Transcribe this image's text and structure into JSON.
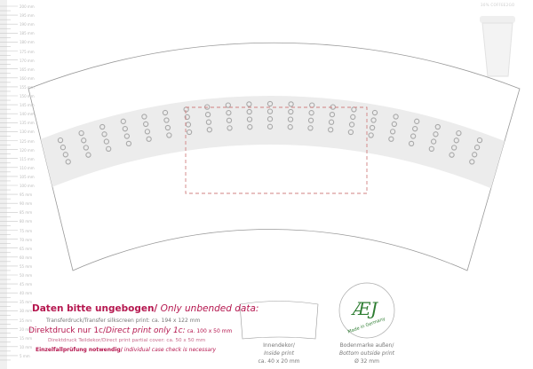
{
  "ruler": {
    "labels": [
      "200 mm",
      "195 mm",
      "190 mm",
      "185 mm",
      "180 mm",
      "175 mm",
      "170 mm",
      "165 mm",
      "160 mm",
      "155 mm",
      "150 mm",
      "145 mm",
      "140 mm",
      "135 mm",
      "130 mm",
      "125 mm",
      "120 mm",
      "115 mm",
      "110 mm",
      "105 mm",
      "100 mm",
      "95 mm",
      "90 mm",
      "85 mm",
      "80 mm",
      "75 mm",
      "70 mm",
      "65 mm",
      "60 mm",
      "55 mm",
      "50 mm",
      "45 mm",
      "40 mm",
      "35 mm",
      "30 mm",
      "25 mm",
      "20 mm",
      "15 mm",
      "10 mm",
      "5 mm"
    ]
  },
  "brand": "30% COFFEE2GO",
  "notes": {
    "heading_de": "Daten bitte ungebogen/",
    "heading_en": " Only unbended data:",
    "transfer": "Transferdruck/Transfer silkscreen print: ca. 194 x 122 mm",
    "direct_de": "Direktdruck nur 1c/",
    "direct_en": "Direct print only 1c:",
    "direct_size": " ca. 100 x 50 mm",
    "partial": "Direktdruck Teildekor/Direct print partial cover: ca. 50 x 50 mm",
    "check_de": "Einzelfallprüfung notwendig/",
    "check_en": " individual case check is necessary"
  },
  "inside": {
    "line1": "Innendekor/",
    "line2": "Inside print",
    "line3": "ca. 40 x 20 mm"
  },
  "bottom": {
    "line1": "Bodenmarke außen/",
    "line2": "Bottom outside print",
    "line3": "Ø 32 mm",
    "logo_text": "Made in Germany"
  },
  "colors": {
    "accent": "#b5174f",
    "accent_light": "#c96a8c",
    "logo_green": "#2e7d32",
    "band": "#ececec",
    "dots": "#a8a8a8",
    "dashed": "#d08080"
  }
}
